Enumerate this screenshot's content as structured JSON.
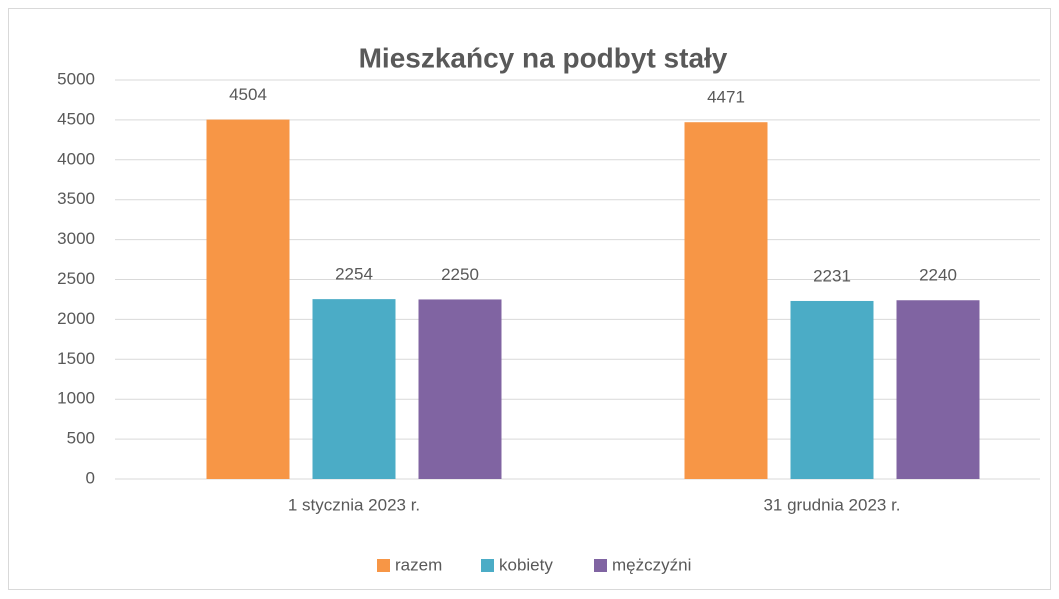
{
  "chart_data": {
    "type": "bar",
    "title": "Mieszkańcy na podbyt stały",
    "categories": [
      "1 stycznia 2023 r.",
      "31 grudnia 2023 r."
    ],
    "series": [
      {
        "name": "razem",
        "color": "#f79646",
        "values": [
          4504,
          4471
        ]
      },
      {
        "name": "kobiety",
        "color": "#4bacc6",
        "values": [
          2254,
          2231
        ]
      },
      {
        "name": "mężczyźni",
        "color": "#8064a2",
        "values": [
          2250,
          2240
        ]
      }
    ],
    "ylim": [
      0,
      5000
    ],
    "yticks": [
      0,
      500,
      1000,
      1500,
      2000,
      2500,
      3000,
      3500,
      4000,
      4500,
      5000
    ],
    "grid": true,
    "legend": "bottom"
  }
}
